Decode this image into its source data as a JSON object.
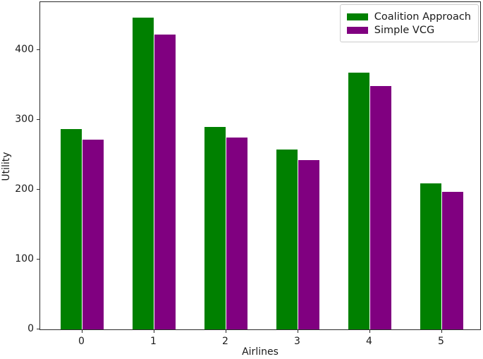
{
  "chart_data": {
    "type": "bar",
    "title": "",
    "xlabel": "Airlines",
    "ylabel": "Utility",
    "categories": [
      "0",
      "1",
      "2",
      "3",
      "4",
      "5"
    ],
    "series": [
      {
        "name": "Coalition Approach",
        "color": "#008000",
        "values": [
          287,
          447,
          290,
          258,
          368,
          209
        ]
      },
      {
        "name": "Simple VCG",
        "color": "#800080",
        "values": [
          272,
          423,
          275,
          243,
          349,
          197
        ]
      }
    ],
    "ylim": [
      0,
      469
    ],
    "yticks": [
      0,
      100,
      200,
      300,
      400
    ],
    "grid": false,
    "legend_position": "upper right",
    "bar_width_fraction": 0.3
  },
  "colors": {
    "axis": "#2b2b2b",
    "text": "#1a1a1a",
    "background": "#ffffff",
    "legend_border": "#cccccc"
  }
}
